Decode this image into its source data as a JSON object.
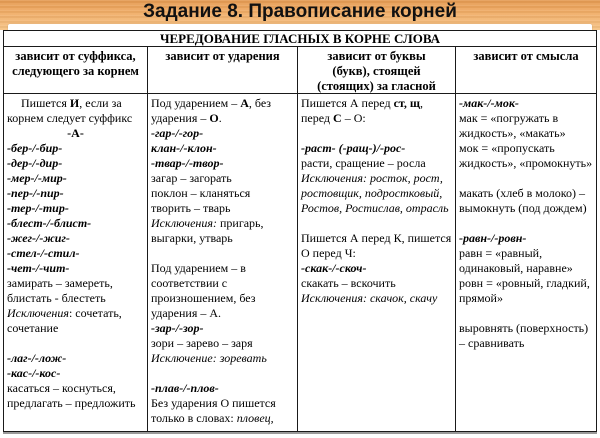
{
  "title": "Задание 8. Правописание корней",
  "colors": {
    "background_orange": "#f1ae6a",
    "table_border": "#1a1a1a",
    "text": "#000000",
    "bottom_shadow": "#9a9a9a"
  },
  "table": {
    "caption": "ЧЕРЕДОВАНИЕ ГЛАСНЫХ В КОРНЕ СЛОВА",
    "columns": [
      {
        "header": "зависит от суффикса, следующего за корнем",
        "blocks": [
          {
            "indent": true,
            "runs": [
              {
                "t": "Пишется "
              },
              {
                "t": "И",
                "s": "b"
              },
              {
                "t": ", если за корнем следует суффикс"
              }
            ]
          },
          {
            "align": "center",
            "runs": [
              {
                "t": "-А-",
                "s": "b"
              }
            ]
          },
          {
            "runs": [
              {
                "t": "-бер-/-бир-",
                "s": "bi"
              }
            ]
          },
          {
            "runs": [
              {
                "t": "-дер-/-дир-",
                "s": "bi"
              }
            ]
          },
          {
            "runs": [
              {
                "t": "-мер-/-мир-",
                "s": "bi"
              }
            ]
          },
          {
            "runs": [
              {
                "t": "-пер-/-пир-",
                "s": "bi"
              }
            ]
          },
          {
            "runs": [
              {
                "t": "-тер-/-тир-",
                "s": "bi"
              }
            ]
          },
          {
            "runs": [
              {
                "t": "-блест-/-блист-",
                "s": "bi"
              }
            ]
          },
          {
            "runs": [
              {
                "t": "-жег-/-жиг-",
                "s": "bi"
              }
            ]
          },
          {
            "runs": [
              {
                "t": "-стел-/-стил-",
                "s": "bi"
              }
            ]
          },
          {
            "runs": [
              {
                "t": "-чет-/-чит-",
                "s": "bi"
              }
            ]
          },
          {
            "runs": [
              {
                "t": "замирать – замереть, блистать - блестеть"
              }
            ]
          },
          {
            "runs": [
              {
                "t": "Исключения",
                "s": "i"
              },
              {
                "t": ": сочетать, сочетание"
              }
            ]
          },
          {
            "gap": true,
            "runs": [
              {
                "t": "-лаг-/-лож-",
                "s": "bi"
              }
            ]
          },
          {
            "runs": [
              {
                "t": "-кас-/-кос-",
                "s": "bi"
              }
            ]
          },
          {
            "runs": [
              {
                "t": "касаться – коснуться, предлагать – предложить"
              }
            ]
          }
        ]
      },
      {
        "header": "зависит от ударения",
        "blocks": [
          {
            "runs": [
              {
                "t": "Под ударением – "
              },
              {
                "t": "А",
                "s": "b"
              },
              {
                "t": ", без ударения – "
              },
              {
                "t": "О",
                "s": "b"
              },
              {
                "t": "."
              }
            ]
          },
          {
            "runs": [
              {
                "t": "-гар-/-гор-",
                "s": "bi"
              }
            ]
          },
          {
            "runs": [
              {
                "t": "клан-/-клон-",
                "s": "bi"
              }
            ]
          },
          {
            "runs": [
              {
                "t": "-твар-/-твор-",
                "s": "bi"
              }
            ]
          },
          {
            "runs": [
              {
                "t": "загар – загорать"
              }
            ]
          },
          {
            "runs": [
              {
                "t": "поклон – кланяться"
              }
            ]
          },
          {
            "runs": [
              {
                "t": "творить – тварь"
              }
            ]
          },
          {
            "runs": [
              {
                "t": "Исключения:",
                "s": "i"
              },
              {
                "t": " пригарь, выгарки, утварь"
              }
            ]
          },
          {
            "gap": true,
            "runs": [
              {
                "t": "Под ударением – в соответствии с произношением, без ударения – А."
              }
            ]
          },
          {
            "runs": [
              {
                "t": "-зар-/-зор-",
                "s": "bi"
              }
            ]
          },
          {
            "runs": [
              {
                "t": "зори – зарево – заря"
              }
            ]
          },
          {
            "runs": [
              {
                "t": "Исключение: зоревать",
                "s": "i"
              }
            ]
          },
          {
            "gap": true,
            "runs": [
              {
                "t": "-плав-/-плов-",
                "s": "bi"
              }
            ]
          },
          {
            "runs": [
              {
                "t": "Без ударения О пишется только в словах: "
              },
              {
                "t": "пловец, пловчиха",
                "s": "i"
              }
            ]
          }
        ]
      },
      {
        "header": "зависит от буквы (букв), стоящей (стоящих) за гласной",
        "blocks": [
          {
            "runs": [
              {
                "t": "Пишется А перед "
              },
              {
                "t": "ст, щ",
                "s": "b"
              },
              {
                "t": ", перед "
              },
              {
                "t": "С",
                "s": "b"
              },
              {
                "t": " – О:"
              }
            ]
          },
          {
            "gap": true,
            "runs": [
              {
                "t": "-раст- (-ращ-)/-рос-",
                "s": "bi"
              }
            ]
          },
          {
            "runs": [
              {
                "t": "расти, сращение – росла"
              }
            ]
          },
          {
            "runs": [
              {
                "t": "Исключения: росток, рост, ростовщик, подростковый, Ростов, Ростислав, отрасль",
                "s": "i"
              }
            ]
          },
          {
            "gap": true,
            "runs": [
              {
                "t": "Пишется А перед К, пишется О перед Ч:"
              }
            ]
          },
          {
            "runs": [
              {
                "t": "-скак-/-скоч-",
                "s": "bi"
              }
            ]
          },
          {
            "runs": [
              {
                "t": "скакать – вскочить"
              }
            ]
          },
          {
            "runs": [
              {
                "t": "Исключения: скачок, скачу",
                "s": "i"
              }
            ]
          }
        ]
      },
      {
        "header": "зависит от смысла",
        "blocks": [
          {
            "runs": [
              {
                "t": "-мак-/-мок-",
                "s": "bi"
              }
            ]
          },
          {
            "runs": [
              {
                "t": "мак = «погружать в жидкость», «макать»"
              }
            ]
          },
          {
            "runs": [
              {
                "t": "мок = «пропускать жидкость», «промокнуть»"
              }
            ]
          },
          {
            "gap": true,
            "runs": [
              {
                "t": "макать (хлеб в молоко) – вымокнуть (под дождем)"
              }
            ]
          },
          {
            "gap": true,
            "runs": [
              {
                "t": "-равн-/-ровн-",
                "s": "bi"
              }
            ]
          },
          {
            "runs": [
              {
                "t": "равн = «равный, одинаковый, наравне»"
              }
            ]
          },
          {
            "runs": [
              {
                "t": "ровн = «ровный, гладкий, прямой»"
              }
            ]
          },
          {
            "gap": true,
            "runs": [
              {
                "t": "выровнять (поверхность) – сравнивать"
              }
            ]
          }
        ]
      }
    ]
  }
}
